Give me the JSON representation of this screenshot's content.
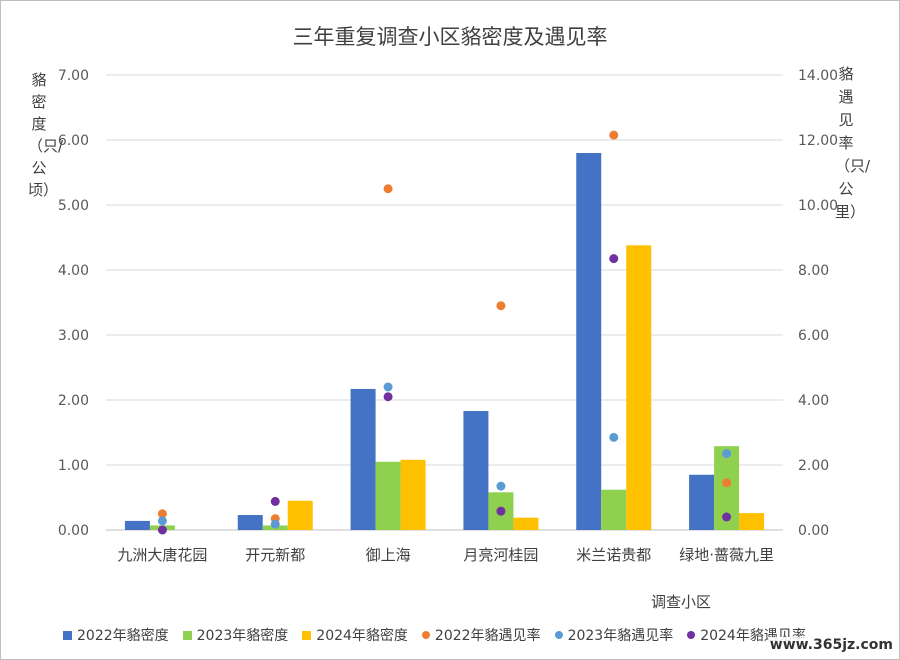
{
  "chart_data": {
    "type": "bar",
    "title": "三年重复调查小区貉密度及遇见率",
    "xlabel": "调查小区",
    "ylabel_left": "貉密度（只/公顷）",
    "ylabel_right": "貉遇见率（只/公里）",
    "categories": [
      "九洲大唐花园",
      "开元新都",
      "御上海",
      "月亮河桂园",
      "米兰诺贵都",
      "绿地·蔷薇九里"
    ],
    "y_left_range": [
      0,
      7
    ],
    "y_left_ticks": [
      "0.00",
      "1.00",
      "2.00",
      "3.00",
      "4.00",
      "5.00",
      "6.00",
      "7.00"
    ],
    "y_right_range": [
      0,
      14
    ],
    "y_right_ticks": [
      "0.00",
      "2.00",
      "4.00",
      "6.00",
      "8.00",
      "10.00",
      "12.00",
      "14.00"
    ],
    "grid": true,
    "legend_position": "bottom",
    "bar_series": [
      {
        "name": "2022年貉密度",
        "color": "#4472c4",
        "values": [
          0.14,
          0.23,
          2.17,
          1.83,
          5.8,
          0.85
        ]
      },
      {
        "name": "2023年貉密度",
        "color": "#8fd14f",
        "values": [
          0.07,
          0.07,
          1.05,
          0.58,
          0.62,
          1.29
        ]
      },
      {
        "name": "2024年貉密度",
        "color": "#ffc000",
        "values": [
          0,
          0.45,
          1.08,
          0.19,
          4.38,
          0.26
        ]
      }
    ],
    "point_series": [
      {
        "name": "2022年貉遇见率",
        "color": "#ed7d31",
        "values": [
          0.5,
          0.35,
          10.5,
          6.9,
          12.15,
          1.45
        ]
      },
      {
        "name": "2023年貉遇见率",
        "color": "#5b9bd5",
        "values": [
          0.28,
          0.18,
          4.4,
          1.35,
          2.85,
          2.35
        ]
      },
      {
        "name": "2024年貉遇见率",
        "color": "#7030a0",
        "values": [
          0.0,
          0.88,
          4.1,
          0.58,
          8.35,
          0.4
        ]
      }
    ]
  },
  "watermark": "www.365jz.com"
}
